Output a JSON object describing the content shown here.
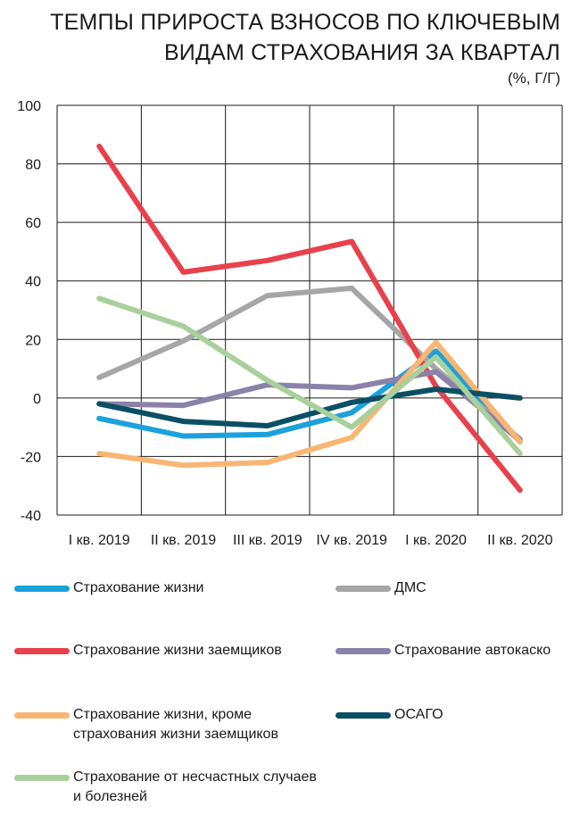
{
  "title_lines": [
    "ТЕМПЫ ПРИРОСТА ВЗНОСОВ ПО КЛЮЧЕВЫМ",
    "ВИДАМ СТРАХОВАНИЯ ЗА КВАРТАЛ"
  ],
  "subtitle": "(%, Г/Г)",
  "chart_data": {
    "type": "line",
    "categories": [
      "I кв. 2019",
      "II кв. 2019",
      "III кв. 2019",
      "IV кв. 2019",
      "I кв. 2020",
      "II кв. 2020"
    ],
    "ylim": [
      -40,
      100
    ],
    "yticks": [
      -40,
      -20,
      0,
      20,
      40,
      60,
      80,
      100
    ],
    "grid": true,
    "legend_position": "bottom",
    "series": [
      {
        "name": "Страхование жизни",
        "color": "#1ba1dc",
        "values": [
          -7,
          -13,
          -12.5,
          -5,
          16,
          -15
        ]
      },
      {
        "name": "ДМС",
        "color": "#a6a6a6",
        "values": [
          7,
          19.5,
          35,
          37.5,
          10,
          -14
        ]
      },
      {
        "name": "Страхование жизни заемщиков",
        "color": "#e8414b",
        "values": [
          86,
          43,
          47,
          53.5,
          4,
          -31.5
        ]
      },
      {
        "name": "Страхование автокаско",
        "color": "#8b82aa",
        "values": [
          -2,
          -2.5,
          4.5,
          3.5,
          9,
          -14.5
        ]
      },
      {
        "name": "Страхование жизни, кроме\nстрахования жизни заемщиков",
        "color": "#f7b673",
        "values": [
          -19,
          -23,
          -22,
          -13.5,
          19,
          -15
        ]
      },
      {
        "name": "ОСАГО",
        "color": "#0b4f64",
        "values": [
          -2,
          -8,
          -9.5,
          -1.5,
          3,
          0
        ]
      },
      {
        "name": "Страхование от несчастных случаев\nи болезней",
        "color": "#a9d09c",
        "values": [
          34,
          24.5,
          6,
          -10,
          14,
          -19
        ]
      }
    ]
  }
}
